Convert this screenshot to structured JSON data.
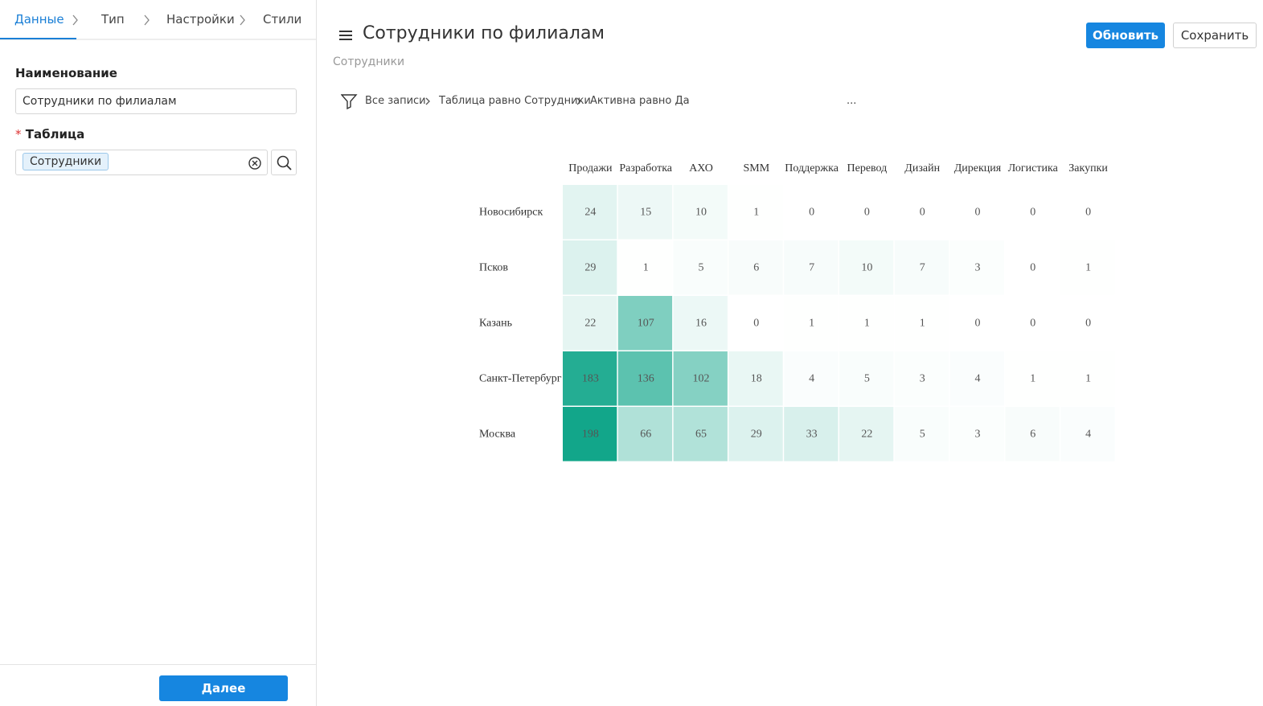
{
  "sidebar": {
    "tabs": [
      "Данные",
      "Тип",
      "Настройки",
      "Стили"
    ],
    "name_label": "Наименование",
    "name_value": "Сотрудники по филиалам",
    "required_mark": "*",
    "table_label": "Таблица",
    "table_value": "Сотрудники",
    "next_button": "Далее"
  },
  "header": {
    "title": "Сотрудники по филиалам",
    "subtitle": "Сотрудники",
    "update_button": "Обновить",
    "save_button": "Сохранить"
  },
  "filter": {
    "items": [
      "Все записи",
      "Таблица равно Сотрудники",
      "Активна равно Да"
    ],
    "more": "..."
  },
  "chart_data": {
    "type": "heatmap",
    "categories": [
      "Продажи",
      "Разработка",
      "АХО",
      "SMM",
      "Поддержка",
      "Перевод",
      "Дизайн",
      "Дирекция",
      "Логистика",
      "Закупки"
    ],
    "rows": [
      "Новосибирск",
      "Псков",
      "Казань",
      "Санкт-Петербург",
      "Москва"
    ],
    "values": [
      [
        24,
        15,
        10,
        1,
        0,
        0,
        0,
        0,
        0,
        0
      ],
      [
        29,
        1,
        5,
        6,
        7,
        10,
        7,
        3,
        0,
        1
      ],
      [
        22,
        107,
        16,
        0,
        1,
        1,
        1,
        0,
        0,
        0
      ],
      [
        183,
        136,
        102,
        18,
        4,
        5,
        3,
        4,
        1,
        1
      ],
      [
        198,
        66,
        65,
        29,
        33,
        22,
        5,
        3,
        6,
        4
      ]
    ],
    "colors": [
      "#ffffff",
      "#12a68a"
    ]
  }
}
